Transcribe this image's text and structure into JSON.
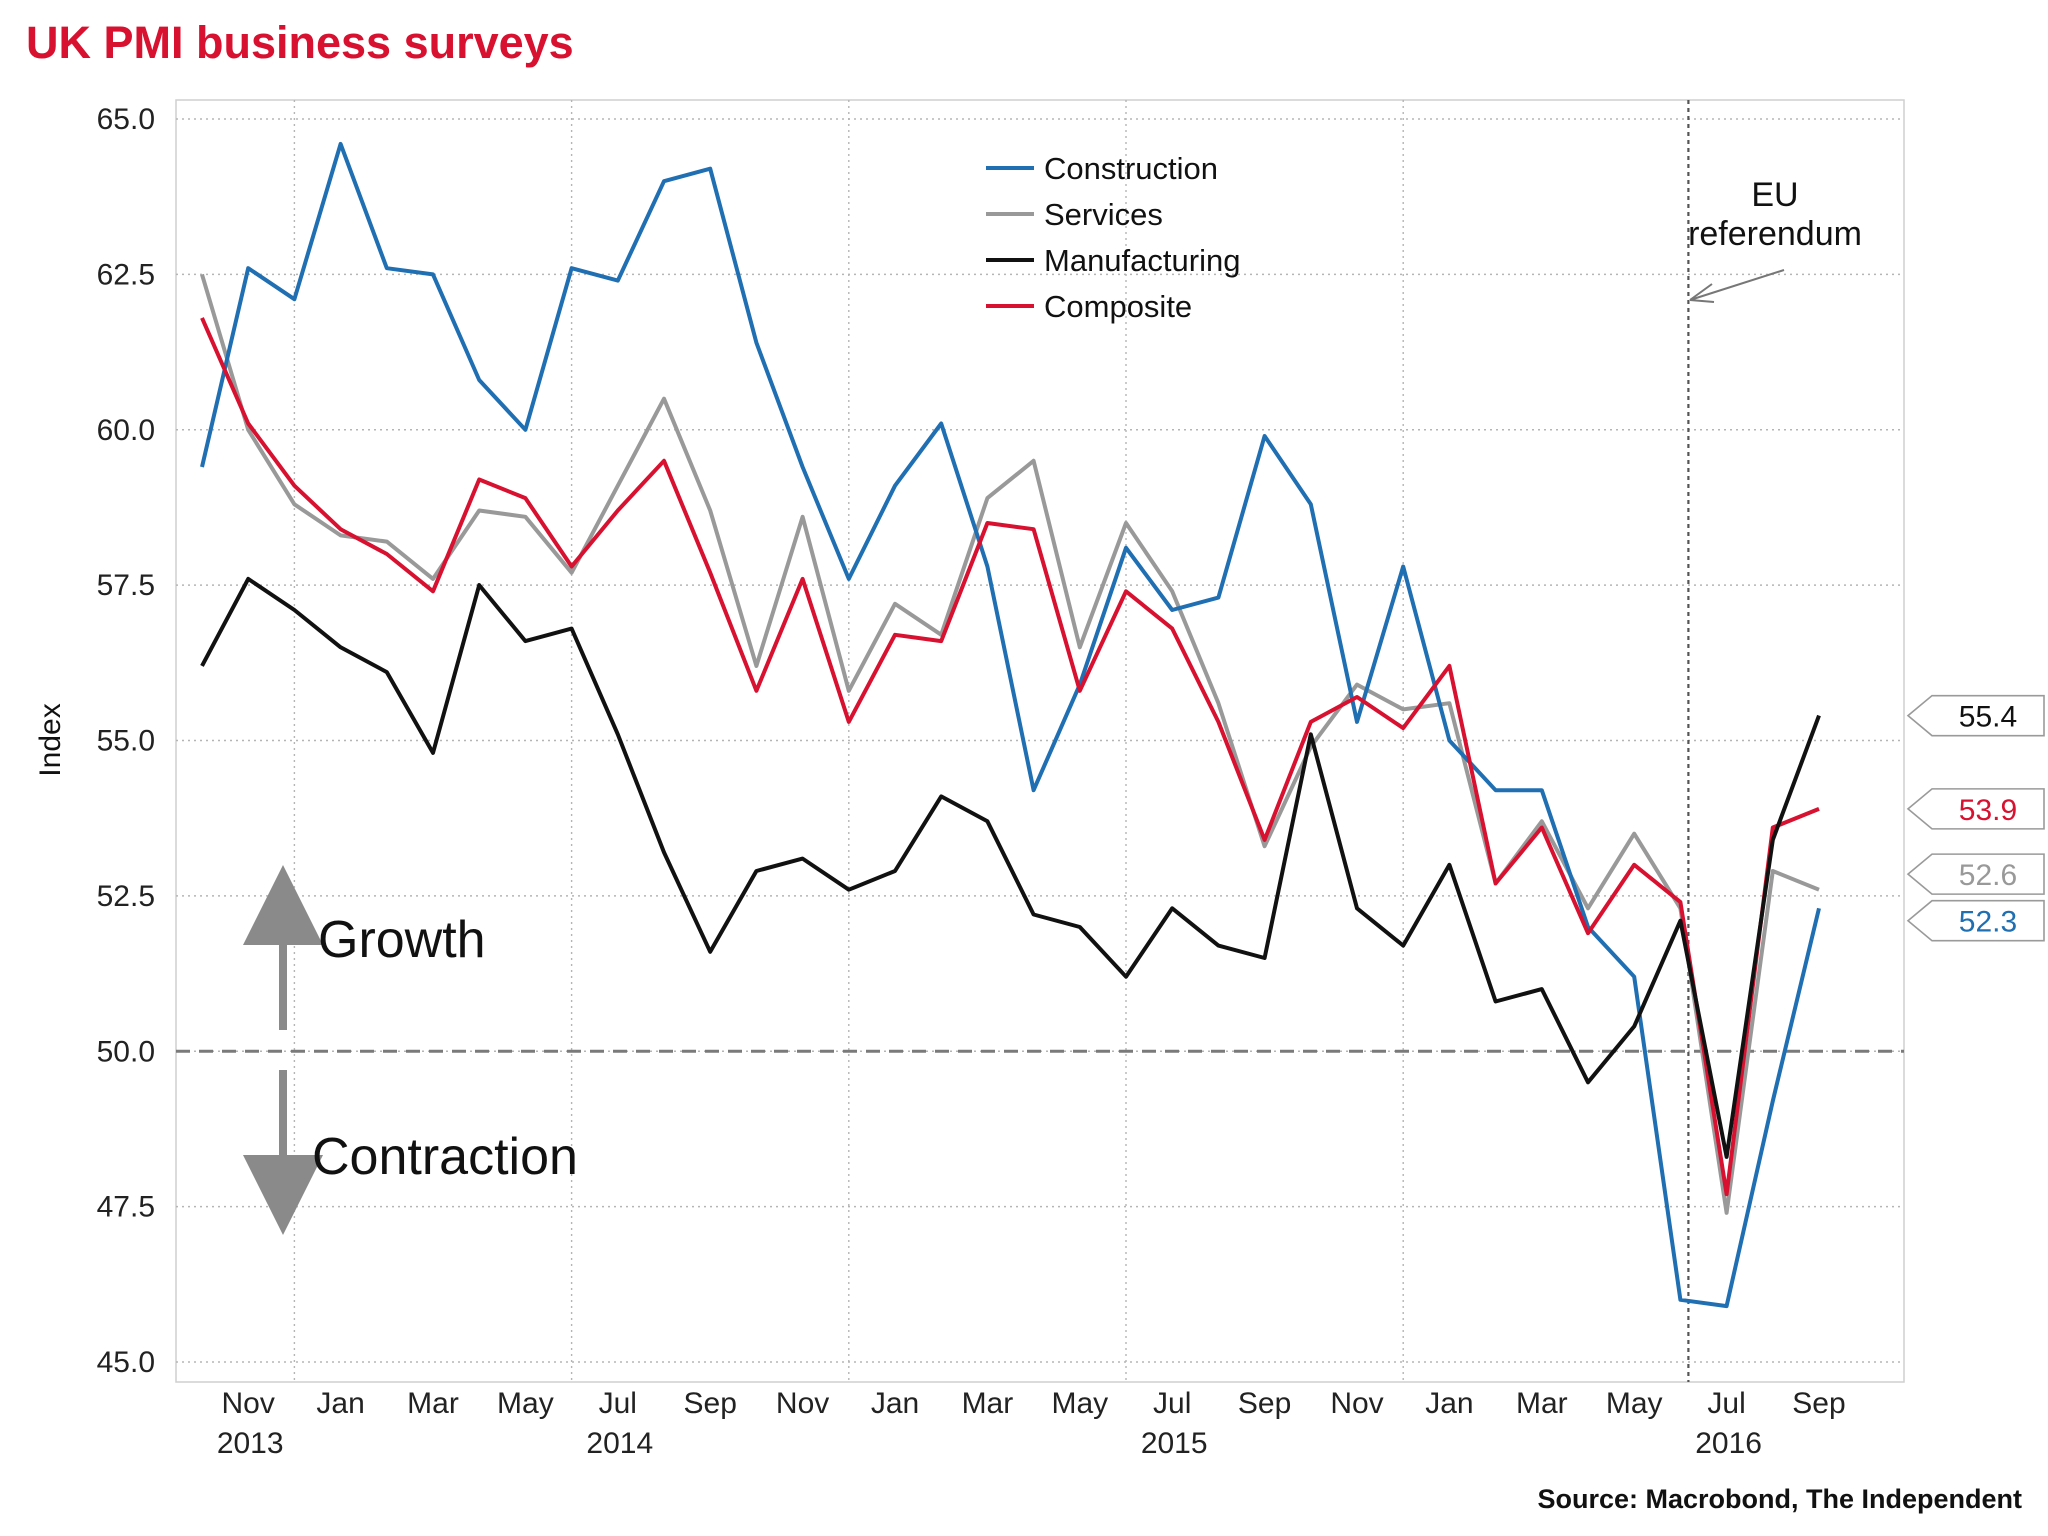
{
  "title": "UK PMI business surveys",
  "source": "Source: Macrobond, The Independent",
  "colors": {
    "title": "#d7112f",
    "construction": "#1f6fb2",
    "services": "#999999",
    "manufacturing": "#111111",
    "composite": "#d7112f",
    "grid": "#b5b5b5",
    "threshold": "#7a7a7a",
    "arrow": "#8a8a8a"
  },
  "annotations": {
    "growth": "Growth",
    "contraction": "Contraction",
    "eu_line1": "EU",
    "eu_line2": "referendum"
  },
  "chart_data": {
    "type": "line",
    "title": "UK PMI business surveys",
    "xlabel": "",
    "ylabel": "Index",
    "ylim": [
      45.0,
      65.0
    ],
    "yticks": [
      "45.0",
      "47.5",
      "50.0",
      "52.5",
      "55.0",
      "57.5",
      "60.0",
      "62.5",
      "65.0"
    ],
    "x": [
      "2013-10",
      "2013-11",
      "2013-12",
      "2014-01",
      "2014-02",
      "2014-03",
      "2014-04",
      "2014-05",
      "2014-06",
      "2014-07",
      "2014-08",
      "2014-09",
      "2014-10",
      "2014-11",
      "2014-12",
      "2015-01",
      "2015-02",
      "2015-03",
      "2015-04",
      "2015-05",
      "2015-06",
      "2015-07",
      "2015-08",
      "2015-09",
      "2015-10",
      "2015-11",
      "2015-12",
      "2016-01",
      "2016-02",
      "2016-03",
      "2016-04",
      "2016-05",
      "2016-06",
      "2016-07",
      "2016-08",
      "2016-09"
    ],
    "x_tick_labels": [
      {
        "month": "Nov",
        "year": "2013",
        "at": "2013-11"
      },
      {
        "month": "Jan",
        "year": "",
        "at": "2014-01"
      },
      {
        "month": "Mar",
        "year": "",
        "at": "2014-03"
      },
      {
        "month": "May",
        "year": "",
        "at": "2014-05"
      },
      {
        "month": "Jul",
        "year": "2014",
        "at": "2014-07"
      },
      {
        "month": "Sep",
        "year": "",
        "at": "2014-09"
      },
      {
        "month": "Nov",
        "year": "",
        "at": "2014-11"
      },
      {
        "month": "Jan",
        "year": "",
        "at": "2015-01"
      },
      {
        "month": "Mar",
        "year": "",
        "at": "2015-03"
      },
      {
        "month": "May",
        "year": "",
        "at": "2015-05"
      },
      {
        "month": "Jul",
        "year": "2015",
        "at": "2015-07"
      },
      {
        "month": "Sep",
        "year": "",
        "at": "2015-09"
      },
      {
        "month": "Nov",
        "year": "",
        "at": "2015-11"
      },
      {
        "month": "Jan",
        "year": "",
        "at": "2016-01"
      },
      {
        "month": "Mar",
        "year": "",
        "at": "2016-03"
      },
      {
        "month": "May",
        "year": "",
        "at": "2016-05"
      },
      {
        "month": "Jul",
        "year": "2016",
        "at": "2016-07"
      },
      {
        "month": "Sep",
        "year": "",
        "at": "2016-09"
      }
    ],
    "vertical_gridlines_at": [
      "2013-12",
      "2014-06",
      "2014-12",
      "2015-06",
      "2015-12"
    ],
    "referendum_line_at": "2016-06",
    "threshold": 50.0,
    "grid": true,
    "legend_position": "top-center",
    "series": [
      {
        "name": "Construction",
        "key": "construction",
        "end_label": "52.3",
        "values": [
          59.4,
          62.6,
          62.1,
          64.6,
          62.6,
          62.5,
          60.8,
          60.0,
          62.6,
          62.4,
          64.0,
          64.2,
          61.4,
          59.4,
          57.6,
          59.1,
          60.1,
          57.8,
          54.2,
          55.9,
          58.1,
          57.1,
          57.3,
          59.9,
          58.8,
          55.3,
          57.8,
          55.0,
          54.2,
          54.2,
          52.0,
          51.2,
          46.0,
          45.9,
          49.2,
          52.3
        ]
      },
      {
        "name": "Services",
        "key": "services",
        "end_label": "52.6",
        "values": [
          62.5,
          60.0,
          58.8,
          58.3,
          58.2,
          57.6,
          58.7,
          58.6,
          57.7,
          59.1,
          60.5,
          58.7,
          56.2,
          58.6,
          55.8,
          57.2,
          56.7,
          58.9,
          59.5,
          56.5,
          58.5,
          57.4,
          55.6,
          53.3,
          54.9,
          55.9,
          55.5,
          55.6,
          52.7,
          53.7,
          52.3,
          53.5,
          52.3,
          47.4,
          52.9,
          52.6
        ]
      },
      {
        "name": "Manufacturing",
        "key": "manufacturing",
        "end_label": "55.4",
        "values": [
          56.2,
          57.6,
          57.1,
          56.5,
          56.1,
          54.8,
          57.5,
          56.6,
          56.8,
          55.1,
          53.2,
          51.6,
          52.9,
          53.1,
          52.6,
          52.9,
          54.1,
          53.7,
          52.2,
          52.0,
          51.2,
          52.3,
          51.7,
          51.5,
          55.1,
          52.3,
          51.7,
          53.0,
          50.8,
          51.0,
          49.5,
          50.4,
          52.1,
          48.3,
          53.4,
          55.4
        ]
      },
      {
        "name": "Composite",
        "key": "composite",
        "end_label": "53.9",
        "values": [
          61.8,
          60.1,
          59.1,
          58.4,
          58.0,
          57.4,
          59.2,
          58.9,
          57.8,
          58.7,
          59.5,
          57.7,
          55.8,
          57.6,
          55.3,
          56.7,
          56.6,
          58.5,
          58.4,
          55.8,
          57.4,
          56.8,
          55.3,
          53.4,
          55.3,
          55.7,
          55.2,
          56.2,
          52.7,
          53.6,
          51.9,
          53.0,
          52.4,
          47.7,
          53.6,
          53.9
        ]
      }
    ]
  }
}
